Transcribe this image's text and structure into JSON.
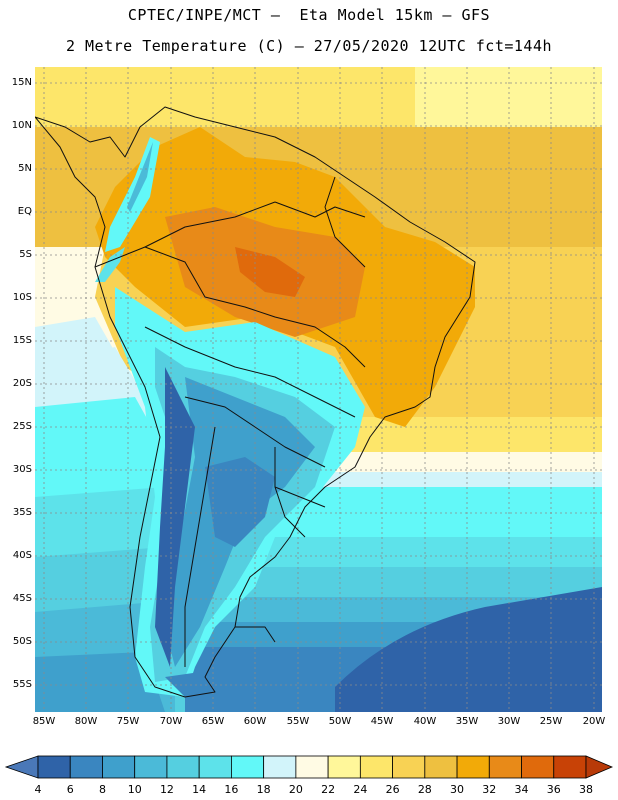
{
  "header": {
    "title_line1": "CPTEC/INPE/MCT –  Eta Model 15km – GFS",
    "title_line2": "2 Metre Temperature (C) – 27/05/2020 12UTC fct=144h"
  },
  "map": {
    "lat_ticks": [
      "15N",
      "10N",
      "5N",
      "EQ",
      "5S",
      "10S",
      "15S",
      "20S",
      "25S",
      "30S",
      "35S",
      "40S",
      "45S",
      "50S",
      "55S"
    ],
    "lon_ticks": [
      "85W",
      "80W",
      "75W",
      "70W",
      "65W",
      "60W",
      "55W",
      "50W",
      "45W",
      "40W",
      "35W",
      "30W",
      "25W",
      "20W"
    ]
  },
  "colorbar": {
    "labels": [
      "4",
      "6",
      "8",
      "10",
      "12",
      "14",
      "16",
      "18",
      "20",
      "22",
      "24",
      "26",
      "28",
      "30",
      "32",
      "34",
      "36",
      "38"
    ],
    "colors": [
      "#4a78b8",
      "#2f63a8",
      "#3a86c0",
      "#3fa0cc",
      "#4bbad8",
      "#55cfe0",
      "#5de2ea",
      "#62f8f8",
      "#d2f4fa",
      "#fffbe4",
      "#fff79a",
      "#fde66a",
      "#f8d254",
      "#eec040",
      "#f2aa08",
      "#e88a18",
      "#e06a0c",
      "#c84206",
      "#b83a08"
    ]
  },
  "colors": {
    "land_border": "#111111",
    "grid": "#8a8a8a"
  }
}
